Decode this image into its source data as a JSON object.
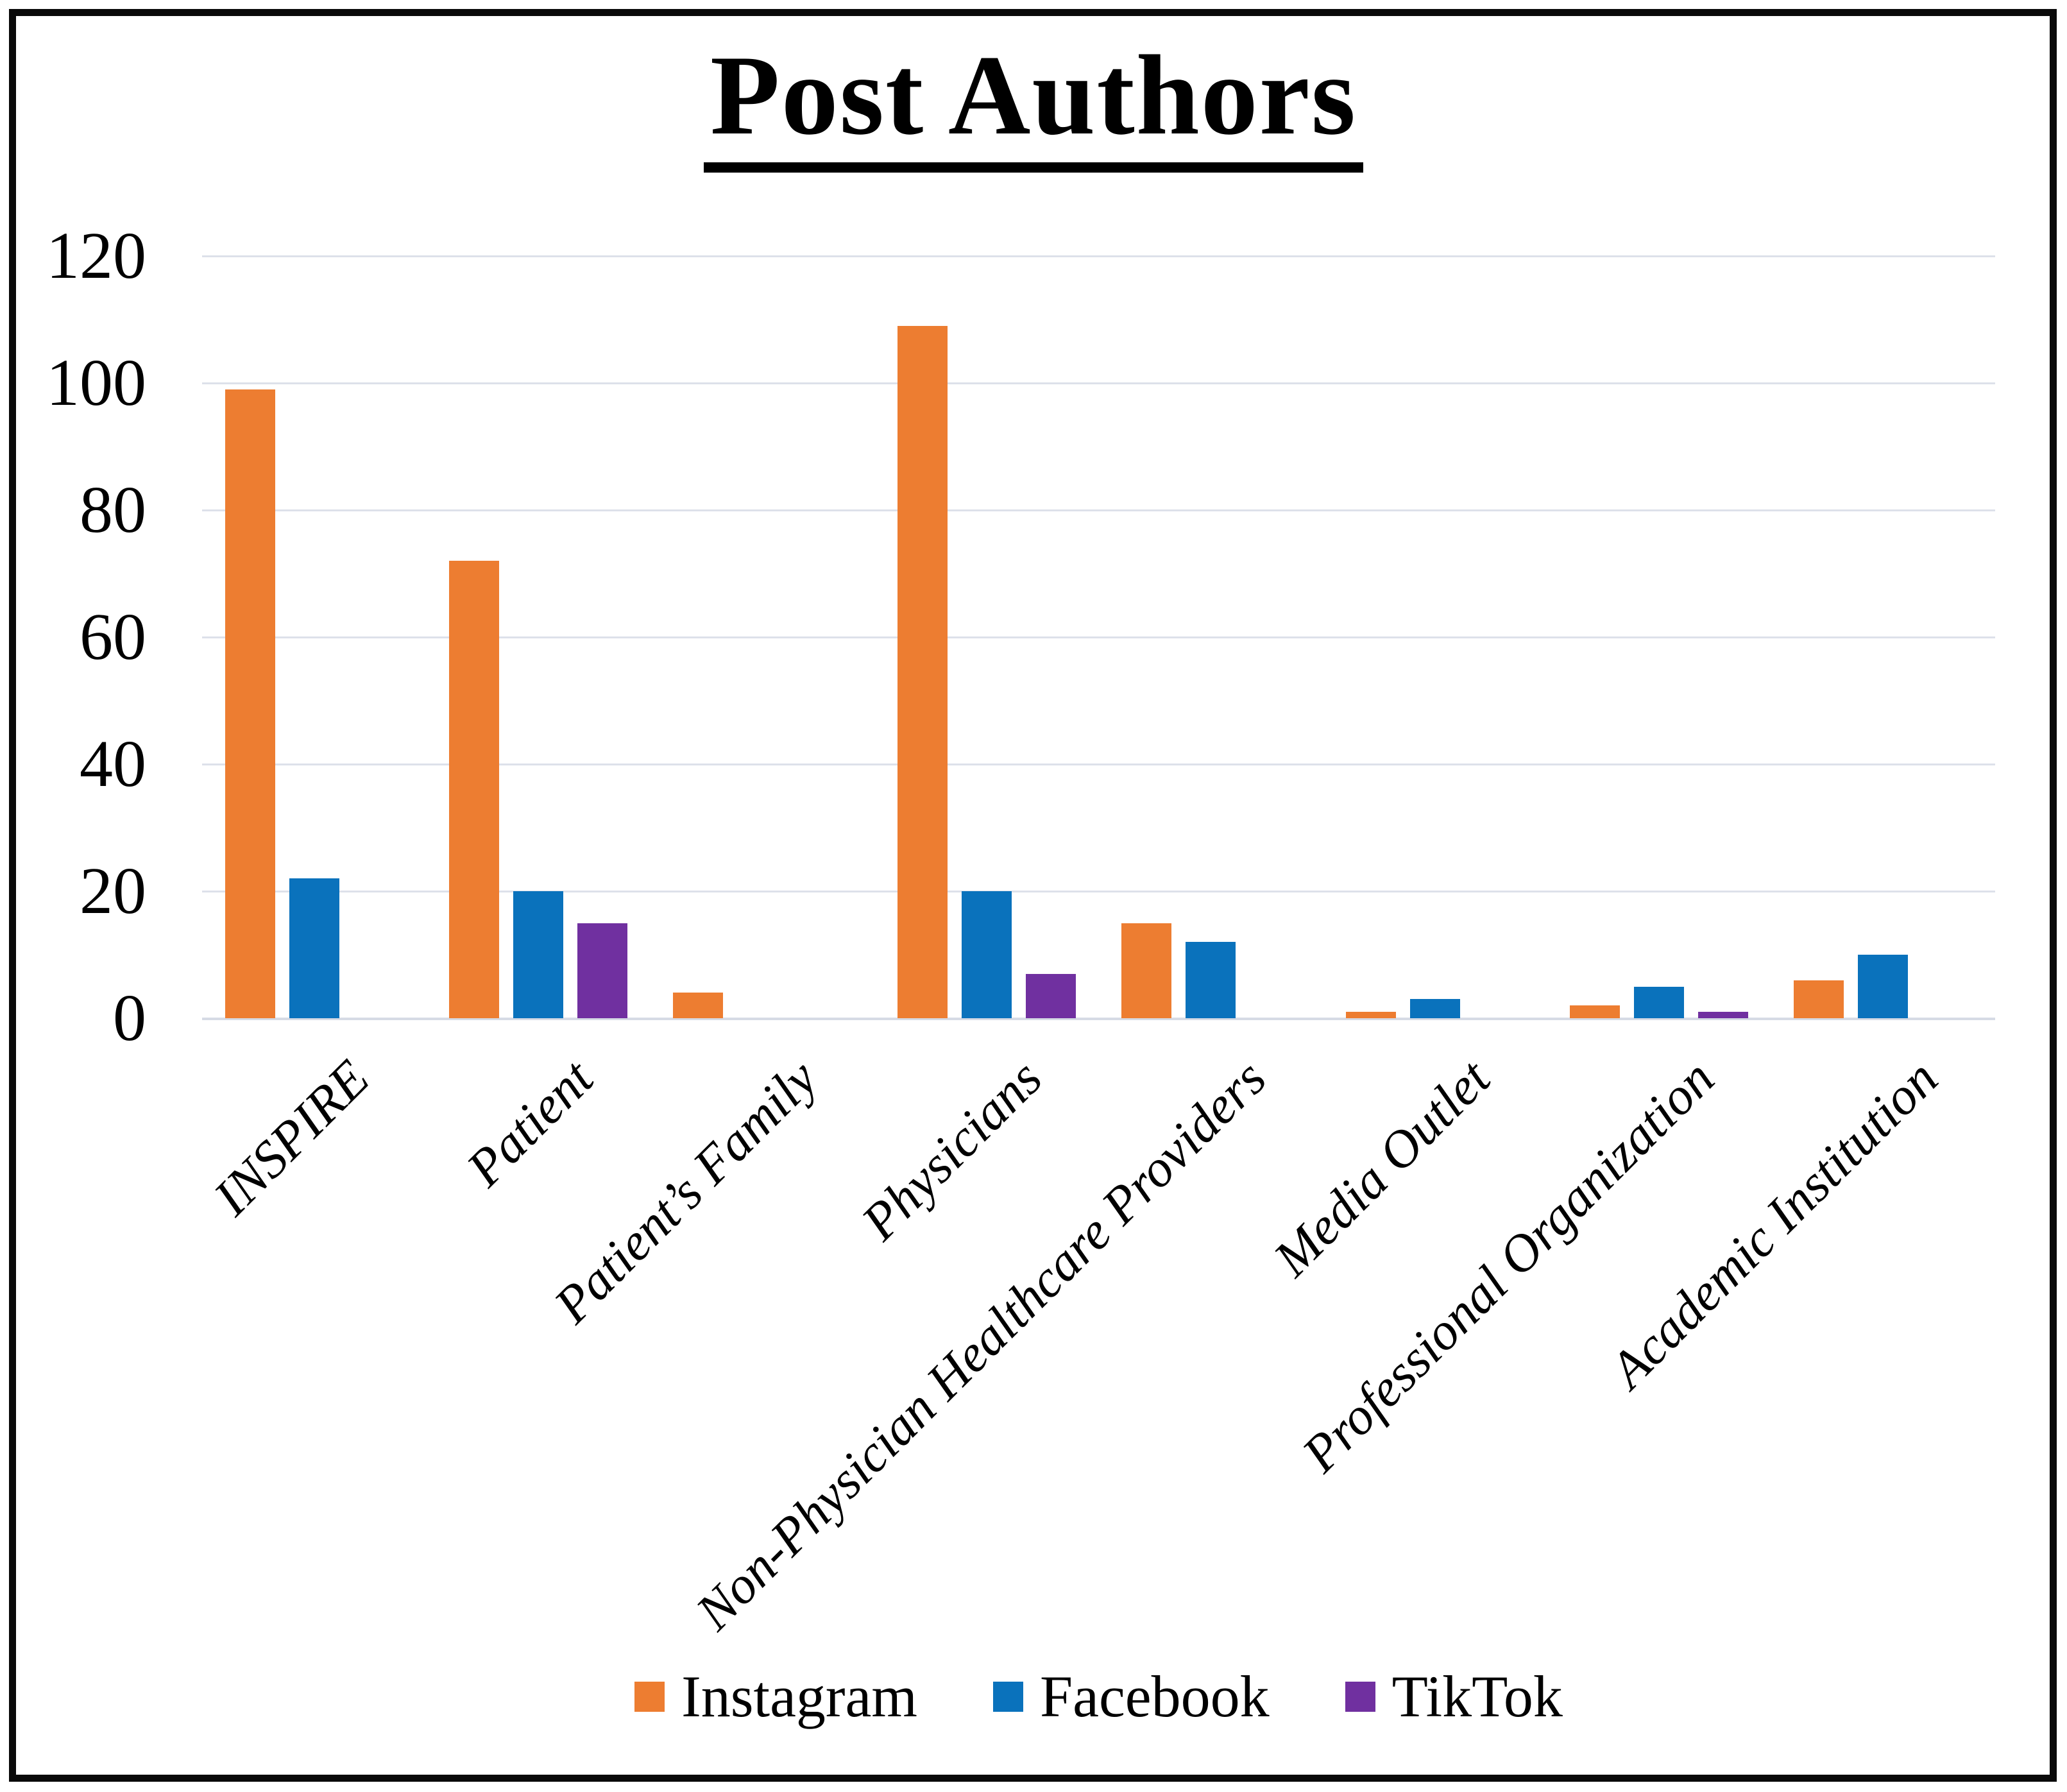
{
  "chart_data": {
    "type": "bar",
    "title": "Post Authors",
    "categories": [
      "INSPIRE",
      "Patient",
      "Patient’s Family",
      "Physicians",
      "Non-Physician Healthcare Providers",
      "Media Outlet",
      "Professional Organization",
      "Academic Institution"
    ],
    "series": [
      {
        "name": "Instagram",
        "color": "#ED7D31",
        "values": [
          99,
          72,
          4,
          109,
          15,
          1,
          2,
          6
        ]
      },
      {
        "name": "Facebook",
        "color": "#0A72BC",
        "values": [
          22,
          20,
          0,
          20,
          12,
          3,
          5,
          10
        ]
      },
      {
        "name": "TikTok",
        "color": "#7030A0",
        "values": [
          0,
          15,
          0,
          7,
          0,
          0,
          1,
          0
        ]
      }
    ],
    "ylim": [
      0,
      120
    ],
    "yticks": [
      "0",
      "20",
      "40",
      "60",
      "80",
      "100",
      "120"
    ],
    "grid": "horizontal gridlines on",
    "gridline_color": "#DDE1EA",
    "legend_position": "bottom center",
    "background": "#FFFFFF",
    "frame_color": "#000000"
  }
}
